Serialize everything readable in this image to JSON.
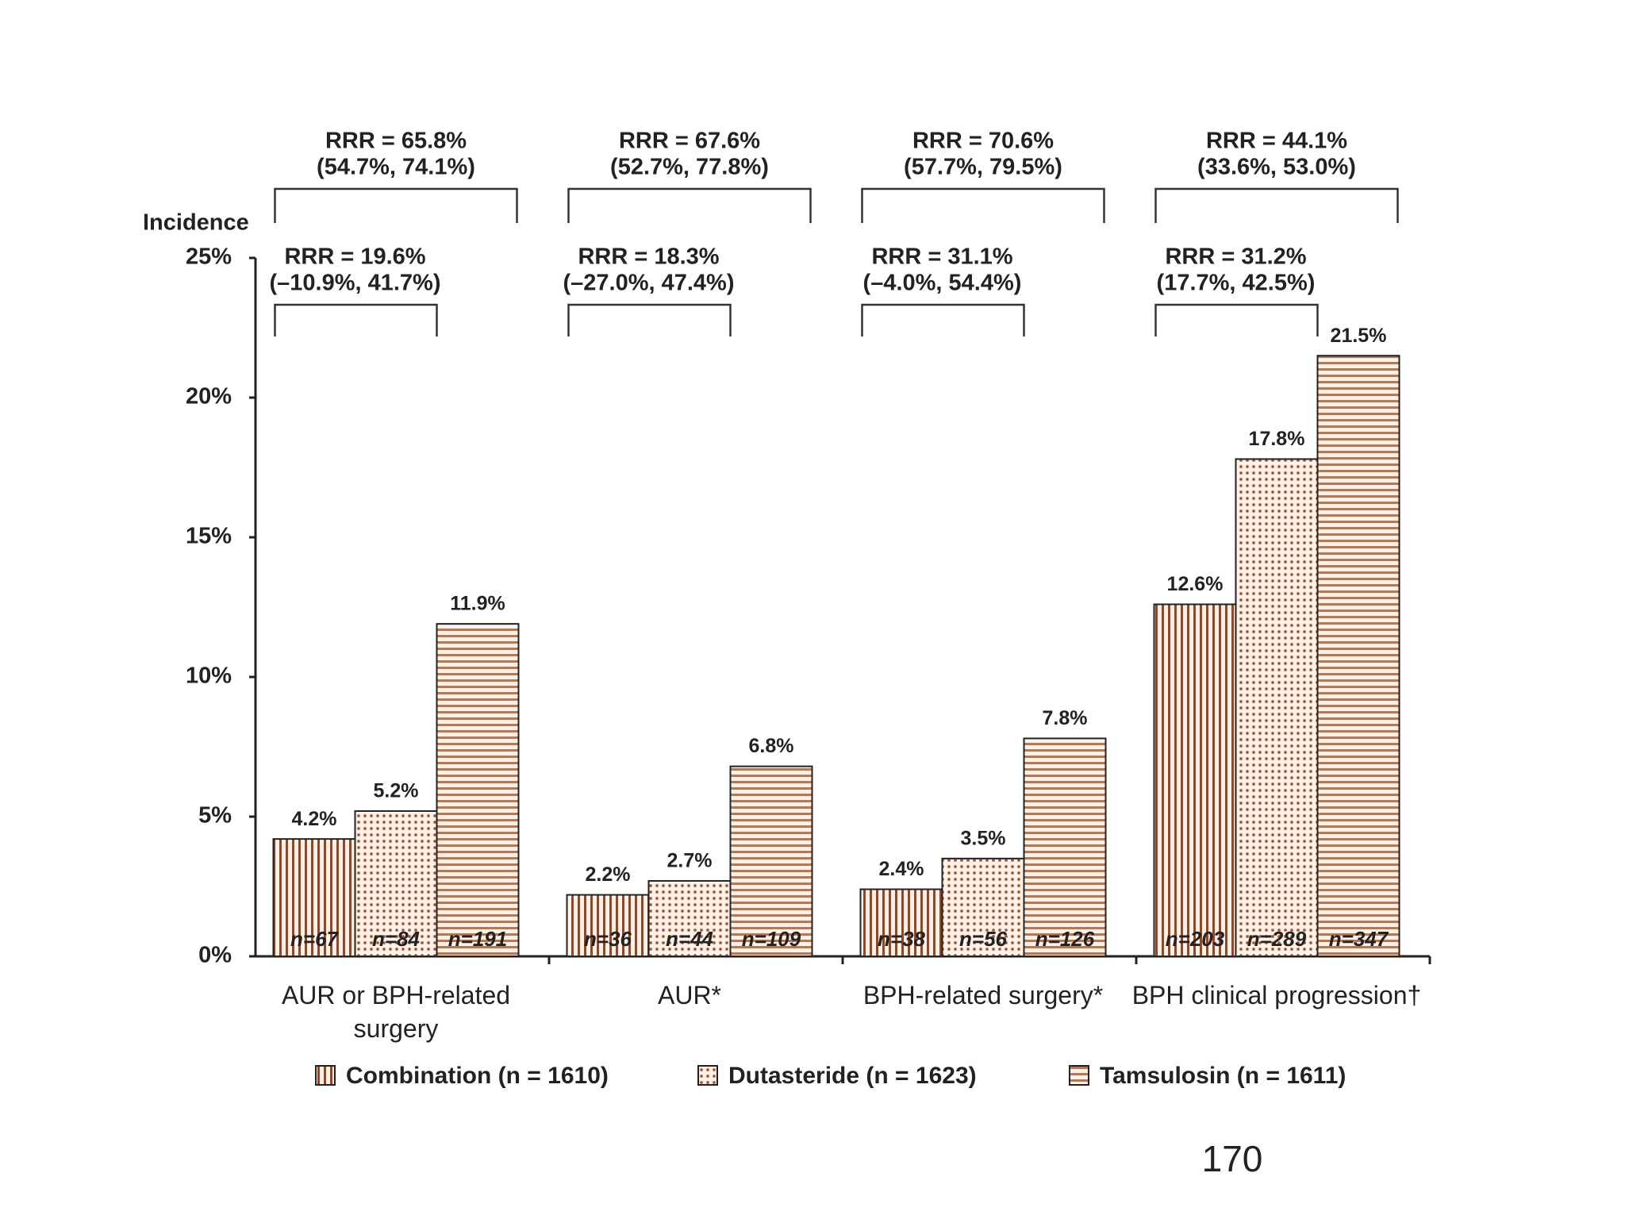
{
  "chart_data": {
    "type": "bar",
    "y_label": "Incidence",
    "categories": [
      "AUR or BPH-related surgery",
      "AUR*",
      "BPH-related surgery*",
      "BPH clinical progression†"
    ],
    "ylim": [
      0,
      25
    ],
    "yticks": [
      {
        "value": 0,
        "label": "0%"
      },
      {
        "value": 5,
        "label": "5%"
      },
      {
        "value": 10,
        "label": "10%"
      },
      {
        "value": 15,
        "label": "15%"
      },
      {
        "value": 20,
        "label": "20%"
      },
      {
        "value": 25,
        "label": "25%"
      }
    ],
    "series": [
      {
        "name": "Combination (n = 1610)",
        "color": "#8b4a2b",
        "pattern": "vertical",
        "values": [
          4.2,
          2.2,
          2.4,
          12.6
        ],
        "value_labels": [
          "4.2%",
          "2.2%",
          "2.4%",
          "12.6%"
        ],
        "n_labels": [
          "n=67",
          "n=36",
          "n=38",
          "n=203"
        ]
      },
      {
        "name": "Dutasteride (n = 1623)",
        "color": "#b5532e",
        "pattern": "dots",
        "values": [
          5.2,
          2.7,
          3.5,
          17.8
        ],
        "value_labels": [
          "5.2%",
          "2.7%",
          "3.5%",
          "17.8%"
        ],
        "n_labels": [
          "n=84",
          "n=44",
          "n=56",
          "n=289"
        ]
      },
      {
        "name": "Tamsulosin (n = 1611)",
        "color": "#b07a5a",
        "pattern": "horizontal",
        "values": [
          11.9,
          6.8,
          7.8,
          21.5
        ],
        "value_labels": [
          "11.9%",
          "6.8%",
          "7.8%",
          "21.5%"
        ],
        "n_labels": [
          "n=191",
          "n=109",
          "n=126",
          "n=347"
        ]
      }
    ],
    "comparisons": [
      {
        "upper": [
          "RRR = 65.8%",
          "(54.7%, 74.1%)"
        ],
        "lower": [
          "RRR = 19.6%",
          "(–10.9%, 41.7%)"
        ]
      },
      {
        "upper": [
          "RRR = 67.6%",
          "(52.7%, 77.8%)"
        ],
        "lower": [
          "RRR = 18.3%",
          "(–27.0%, 47.4%)"
        ]
      },
      {
        "upper": [
          "RRR = 70.6%",
          "(57.7%, 79.5%)"
        ],
        "lower": [
          "RRR = 31.1%",
          "(–4.0%, 54.4%)"
        ]
      },
      {
        "upper": [
          "RRR = 44.1%",
          "(33.6%, 53.0%)"
        ],
        "lower": [
          "RRR = 31.2%",
          "(17.7%, 42.5%)"
        ]
      }
    ],
    "page_number": "170"
  }
}
